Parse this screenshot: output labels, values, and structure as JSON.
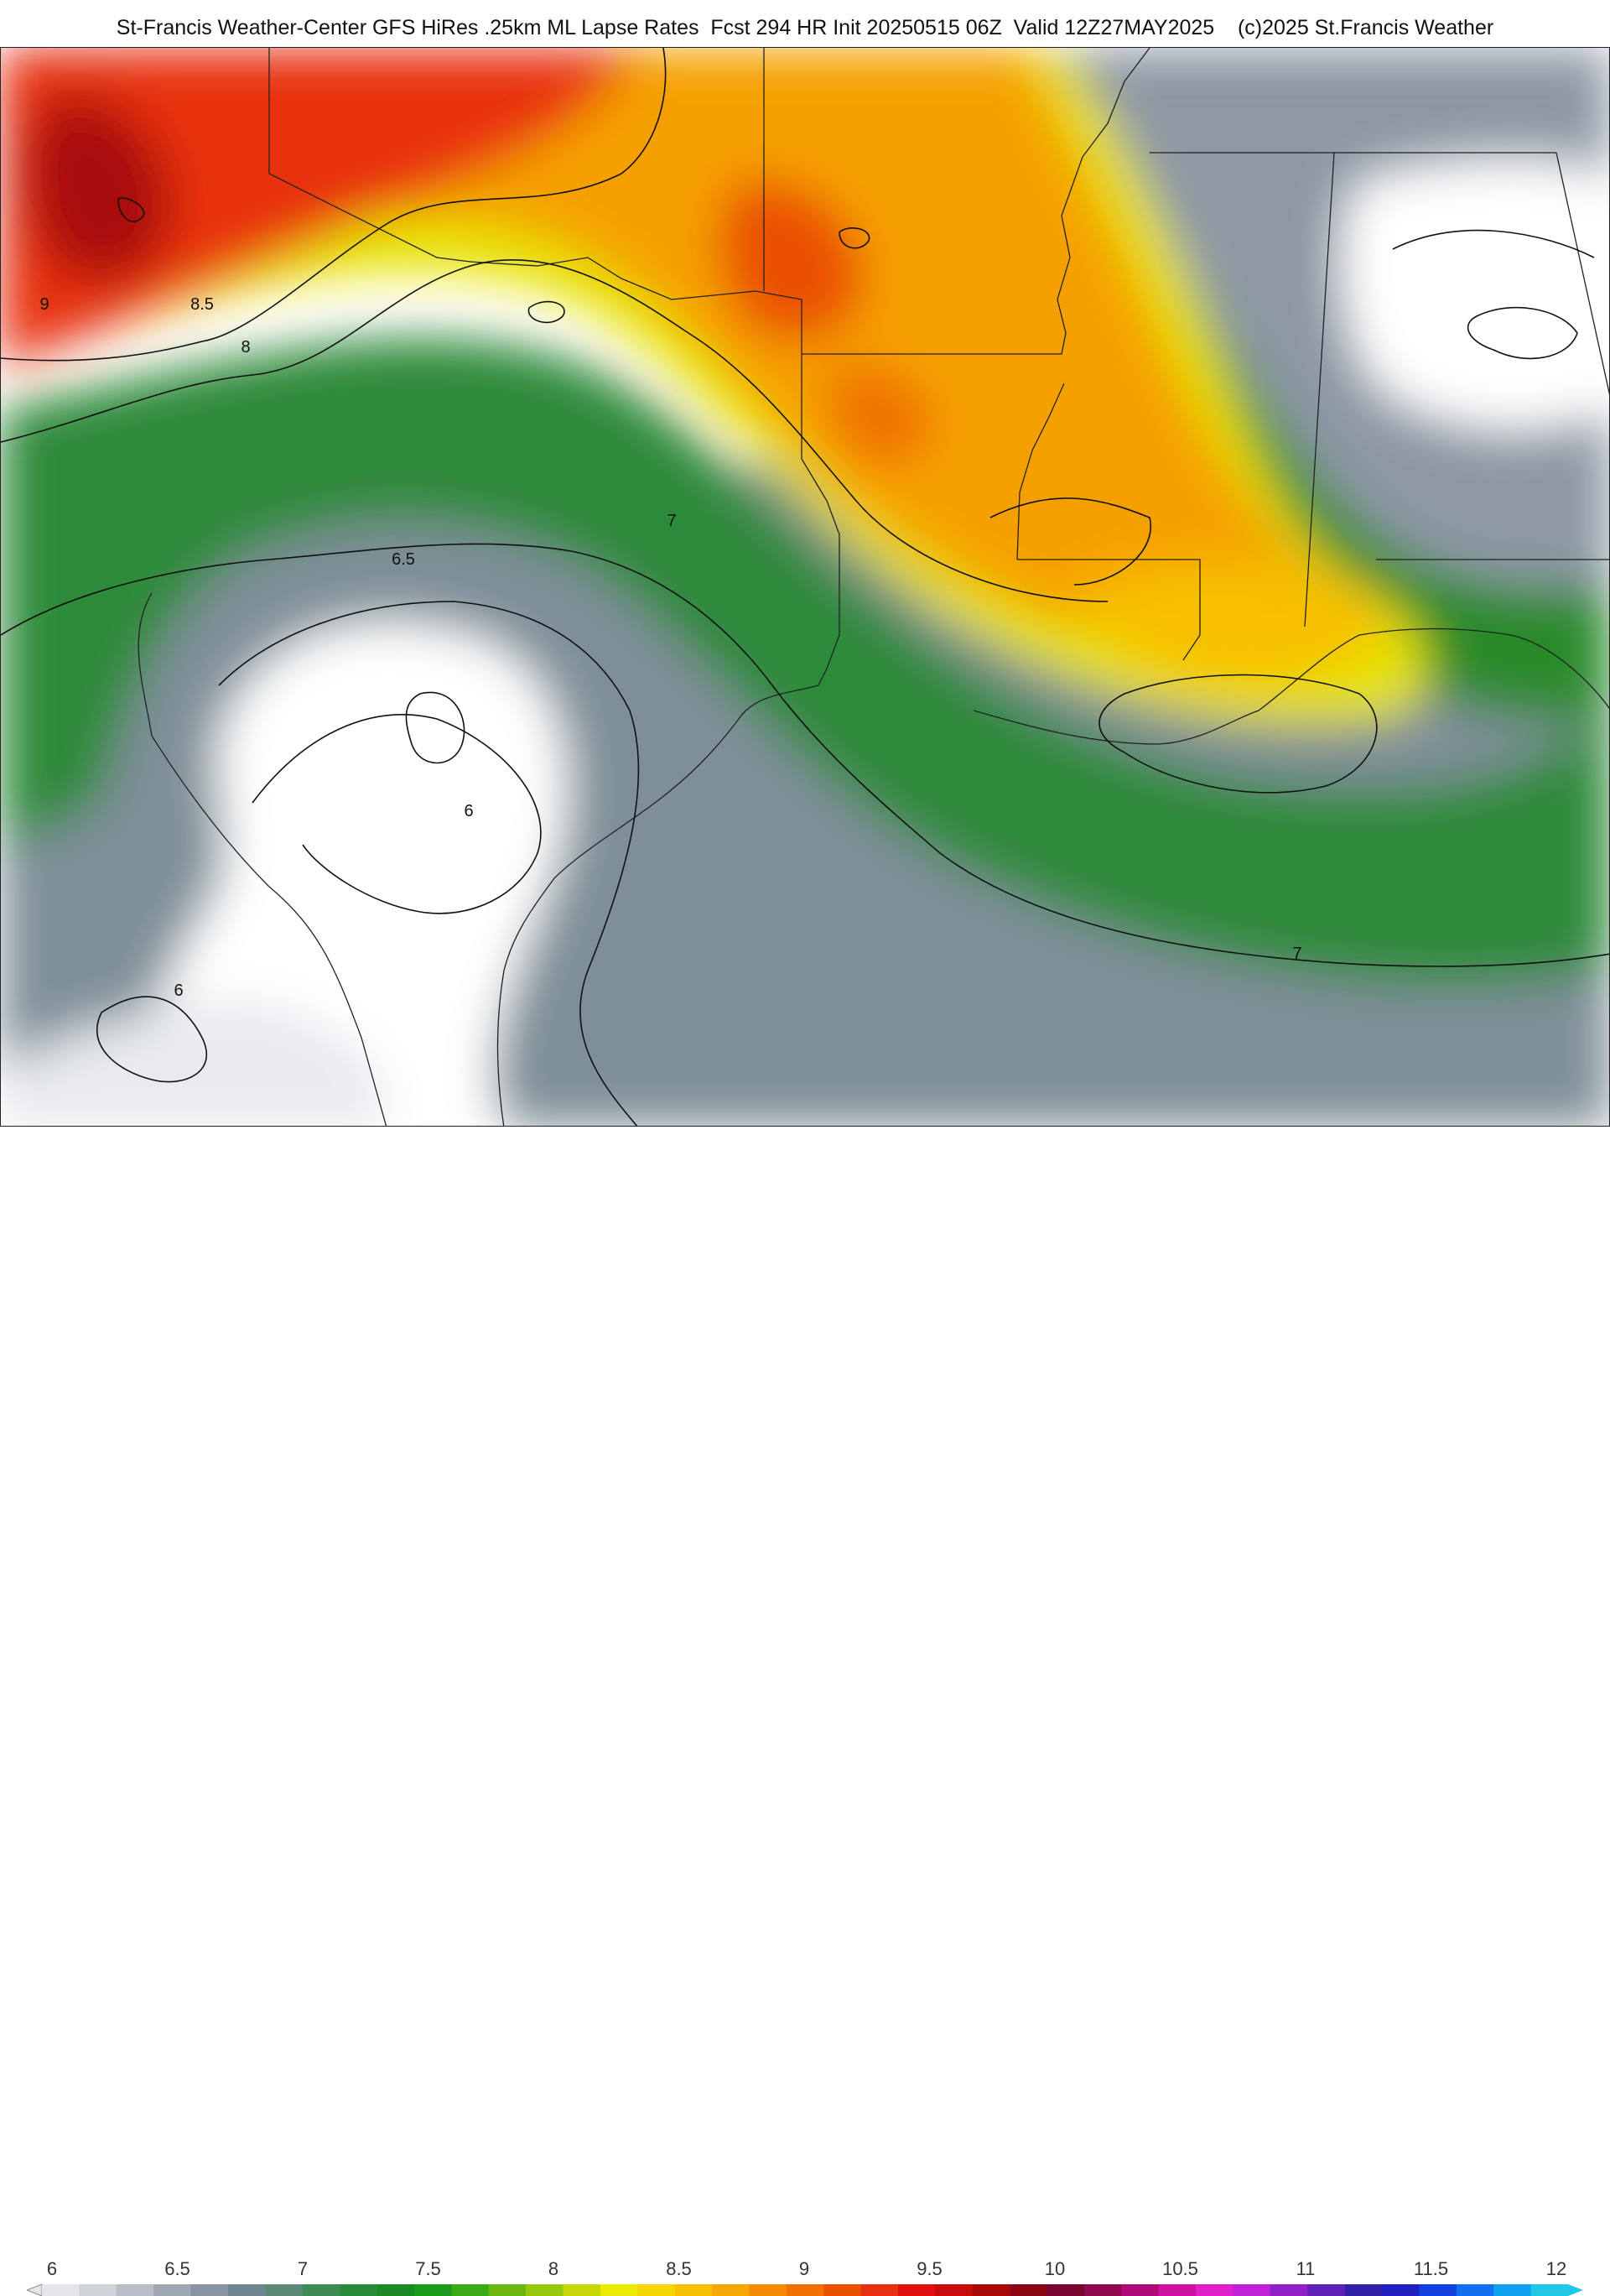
{
  "header": {
    "title": "St-Francis Weather-Center GFS HiRes .25km ML Lapse Rates  Fcst 294 HR Init 20250515 06Z  Valid 12Z27MAY2025    (c)2025 St.Francis Weather"
  },
  "map": {
    "contour_labels": [
      "9",
      "8.5",
      "8",
      "7",
      "6.5",
      "6",
      "6",
      "7"
    ]
  },
  "legend": {
    "ticks": [
      "6",
      "6.5",
      "7",
      "7.5",
      "8",
      "8.5",
      "9",
      "9.5",
      "10",
      "10.5",
      "11",
      "11.5",
      "12"
    ],
    "colors": [
      "#e4e6ea",
      "#cfd3d9",
      "#b8bec6",
      "#a0a9b3",
      "#8795a1",
      "#6f8790",
      "#5a8a74",
      "#3f8a55",
      "#2a8a3a",
      "#1a8a25",
      "#1a9a1a",
      "#3aaa15",
      "#6ab80f",
      "#98c80a",
      "#c4d805",
      "#ecea00",
      "#f5d800",
      "#f8c000",
      "#f8a600",
      "#f58c00",
      "#f07000",
      "#ea5000",
      "#e83010",
      "#e01010",
      "#c80c0c",
      "#a80808",
      "#8c0614",
      "#7a0430",
      "#900850",
      "#b00a78",
      "#d010a0",
      "#e020c8",
      "#c020d8",
      "#9020c8",
      "#6020b8",
      "#3020a8",
      "#2020c0",
      "#1040e0",
      "#1070f0",
      "#10a0f0",
      "#20c8e8"
    ]
  }
}
